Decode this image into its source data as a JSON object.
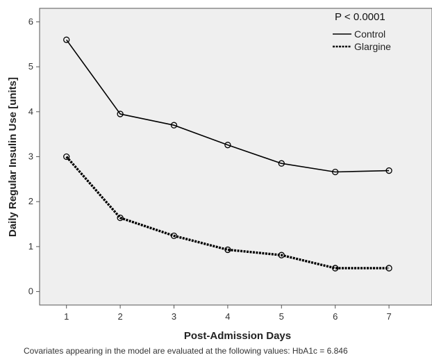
{
  "chart_data": {
    "type": "line",
    "x": [
      1,
      2,
      3,
      4,
      5,
      6,
      7
    ],
    "series": [
      {
        "name": "Control",
        "values": [
          5.6,
          3.95,
          3.7,
          3.26,
          2.85,
          2.66,
          2.69
        ]
      },
      {
        "name": "Glargine",
        "values": [
          3.0,
          1.64,
          1.24,
          0.93,
          0.81,
          0.52,
          0.52
        ]
      }
    ],
    "xlabel": "Post-Admission Days",
    "ylabel": "Daily Regular Insulin Use [units]",
    "xlim": [
      0.5,
      7.8
    ],
    "ylim": [
      -0.3,
      6.3
    ],
    "yticks": [
      0,
      1,
      2,
      3,
      4,
      5,
      6
    ],
    "xticks": [
      1,
      2,
      3,
      4,
      5,
      6,
      7
    ],
    "annotation": "P < 0.0001",
    "legend_position": "top-right",
    "grid": false,
    "background_color": "#efefef",
    "line_color": "#000000"
  },
  "footnote": "Covariates appearing in the model are evaluated at the following values: HbA1c = 6.846"
}
